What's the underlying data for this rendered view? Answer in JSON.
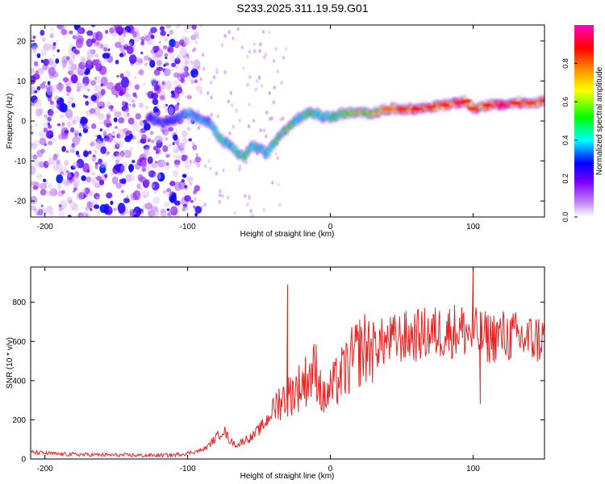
{
  "title": "S233.2025.311.19.59.G01",
  "chart_data": [
    {
      "type": "heatmap",
      "name": "spectrogram",
      "xlabel": "Height of straight line (km)",
      "ylabel": "Frequency (Hz)",
      "xlim": [
        -210,
        150
      ],
      "ylim": [
        -24,
        24
      ],
      "xticks": [
        -200,
        -100,
        0,
        100
      ],
      "yticks": [
        -20,
        -10,
        0,
        10,
        20
      ],
      "colorbar": {
        "label": "Normalized spectral amplitude",
        "range": [
          0,
          1
        ],
        "ticks": [
          "0.0",
          "0.2",
          "0.4",
          "0.6",
          "0.8"
        ],
        "colors": [
          "#ffffff",
          "#a020f0",
          "#0000ff",
          "#00ffff",
          "#00ff00",
          "#ffff00",
          "#ff8000",
          "#ff0000",
          "#ff00ff"
        ]
      },
      "main_track": {
        "x": [
          -128,
          -120,
          -112,
          -105,
          -100,
          -95,
          -90,
          -85,
          -80,
          -75,
          -70,
          -65,
          -60,
          -55,
          -50,
          -45,
          -40,
          -35,
          -30,
          -25,
          -20,
          -15,
          -10,
          -5,
          0,
          10,
          20,
          30,
          40,
          50,
          60,
          70,
          80,
          90,
          95,
          100,
          110,
          120,
          130,
          140,
          150
        ],
        "y": [
          1,
          0,
          0,
          1,
          2,
          1,
          0,
          0,
          -3,
          -5,
          -6,
          -8,
          -9,
          -6,
          -7,
          -8,
          -6,
          -3,
          -2,
          0,
          1,
          2,
          2,
          1,
          1,
          2,
          2,
          2,
          3,
          3,
          3,
          3.5,
          4,
          4.5,
          5,
          3,
          4,
          4,
          4.5,
          4.5,
          5
        ],
        "amplitude": [
          0.3,
          0.35,
          0.3,
          0.35,
          0.4,
          0.45,
          0.4,
          0.4,
          0.45,
          0.5,
          0.45,
          0.5,
          0.55,
          0.45,
          0.5,
          0.45,
          0.5,
          0.55,
          0.6,
          0.5,
          0.5,
          0.55,
          0.5,
          0.45,
          0.5,
          0.6,
          0.65,
          0.7,
          0.75,
          0.8,
          0.85,
          0.8,
          0.85,
          0.9,
          0.85,
          0.8,
          0.85,
          0.9,
          0.85,
          0.8,
          0.8
        ]
      }
    },
    {
      "type": "line",
      "name": "snr",
      "xlabel": "Height of straight line (km)",
      "ylabel": "SNR (10 * v/v)",
      "xlim": [
        -210,
        150
      ],
      "ylim": [
        0,
        980
      ],
      "xticks": [
        -200,
        -100,
        0,
        100
      ],
      "yticks": [
        0,
        200,
        400,
        600,
        800
      ],
      "color": "#ee2222",
      "x": [
        -210,
        -190,
        -170,
        -150,
        -130,
        -110,
        -100,
        -90,
        -85,
        -80,
        -75,
        -70,
        -65,
        -60,
        -55,
        -50,
        -45,
        -40,
        -35,
        -30,
        -25,
        -20,
        -15,
        -10,
        -5,
        0,
        5,
        10,
        15,
        20,
        25,
        30,
        40,
        50,
        60,
        70,
        80,
        90,
        100,
        110,
        120,
        130,
        140,
        150
      ],
      "y": [
        35,
        25,
        22,
        20,
        18,
        20,
        30,
        45,
        70,
        110,
        150,
        90,
        70,
        100,
        110,
        150,
        190,
        260,
        300,
        320,
        350,
        380,
        420,
        460,
        300,
        350,
        400,
        450,
        500,
        550,
        570,
        580,
        600,
        620,
        630,
        640,
        650,
        660,
        640,
        620,
        630,
        620,
        610,
        615
      ],
      "spikes": [
        {
          "x": -30,
          "y": 890
        },
        {
          "x": 100,
          "y": 980
        },
        {
          "x": 105,
          "y": 280
        }
      ]
    }
  ]
}
